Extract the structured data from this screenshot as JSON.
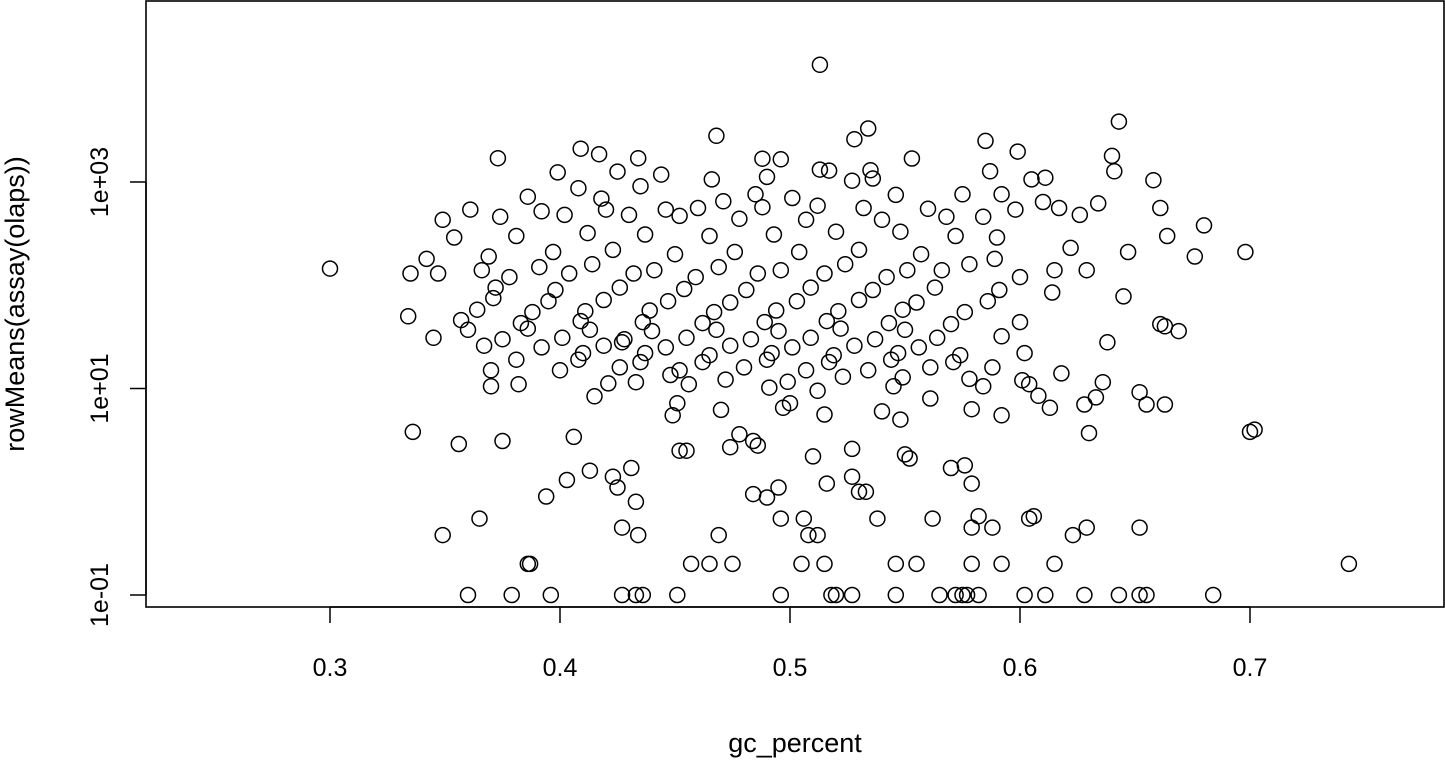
{
  "chart_data": {
    "type": "scatter",
    "title": "",
    "xlabel": "gc_percent",
    "ylabel": "rowMeans(assay(olaps))",
    "x_ticks": [
      "0.3",
      "0.4",
      "0.5",
      "0.6",
      "0.7"
    ],
    "y_ticks": [
      "1e-01",
      "1e+01",
      "1e+03"
    ],
    "xlim": [
      0.22,
      0.78
    ],
    "ylim": [
      0.05,
      50000
    ],
    "y_scale": "log10",
    "grid": false,
    "marker": "open-circle",
    "point_color": "#000000",
    "points": [
      [
        0.513,
        13640
      ],
      [
        0.643,
        3850
      ],
      [
        0.534,
        3300
      ],
      [
        0.468,
        2800
      ],
      [
        0.528,
        2600
      ],
      [
        0.585,
        2500
      ],
      [
        0.409,
        2100
      ],
      [
        0.599,
        1970
      ],
      [
        0.417,
        1860
      ],
      [
        0.373,
        1700
      ],
      [
        0.434,
        1700
      ],
      [
        0.488,
        1680
      ],
      [
        0.496,
        1660
      ],
      [
        0.553,
        1690
      ],
      [
        0.64,
        1790
      ],
      [
        0.641,
        1270
      ],
      [
        0.513,
        1320
      ],
      [
        0.535,
        1300
      ],
      [
        0.399,
        1240
      ],
      [
        0.425,
        1260
      ],
      [
        0.444,
        1180
      ],
      [
        0.49,
        1120
      ],
      [
        0.517,
        1290
      ],
      [
        0.587,
        1270
      ],
      [
        0.611,
        1100
      ],
      [
        0.605,
        1060
      ],
      [
        0.408,
        870
      ],
      [
        0.435,
        910
      ],
      [
        0.466,
        1060
      ],
      [
        0.527,
        1030
      ],
      [
        0.536,
        1080
      ],
      [
        0.658,
        1040
      ],
      [
        0.386,
        720
      ],
      [
        0.418,
        690
      ],
      [
        0.471,
        650
      ],
      [
        0.485,
        760
      ],
      [
        0.501,
        700
      ],
      [
        0.546,
        750
      ],
      [
        0.575,
        760
      ],
      [
        0.592,
        760
      ],
      [
        0.61,
        640
      ],
      [
        0.634,
        620
      ],
      [
        0.361,
        540
      ],
      [
        0.392,
        520
      ],
      [
        0.42,
        540
      ],
      [
        0.446,
        540
      ],
      [
        0.46,
        560
      ],
      [
        0.488,
        570
      ],
      [
        0.512,
        590
      ],
      [
        0.532,
        560
      ],
      [
        0.56,
        550
      ],
      [
        0.598,
        540
      ],
      [
        0.617,
        560
      ],
      [
        0.661,
        560
      ],
      [
        0.349,
        430
      ],
      [
        0.374,
        460
      ],
      [
        0.402,
        480
      ],
      [
        0.43,
        480
      ],
      [
        0.452,
        470
      ],
      [
        0.478,
        440
      ],
      [
        0.507,
        430
      ],
      [
        0.54,
        430
      ],
      [
        0.568,
        460
      ],
      [
        0.584,
        460
      ],
      [
        0.626,
        480
      ],
      [
        0.68,
        380
      ],
      [
        0.354,
        290
      ],
      [
        0.381,
        300
      ],
      [
        0.412,
        320
      ],
      [
        0.437,
        310
      ],
      [
        0.465,
        300
      ],
      [
        0.493,
        310
      ],
      [
        0.52,
        330
      ],
      [
        0.548,
        330
      ],
      [
        0.572,
        300
      ],
      [
        0.59,
        290
      ],
      [
        0.664,
        300
      ],
      [
        0.698,
        210
      ],
      [
        0.342,
        180
      ],
      [
        0.369,
        190
      ],
      [
        0.397,
        210
      ],
      [
        0.423,
        220
      ],
      [
        0.45,
        200
      ],
      [
        0.476,
        210
      ],
      [
        0.504,
        210
      ],
      [
        0.53,
        220
      ],
      [
        0.557,
        200
      ],
      [
        0.589,
        180
      ],
      [
        0.622,
        230
      ],
      [
        0.676,
        190
      ],
      [
        0.335,
        130
      ],
      [
        0.366,
        140
      ],
      [
        0.391,
        150
      ],
      [
        0.414,
        160
      ],
      [
        0.441,
        140
      ],
      [
        0.469,
        150
      ],
      [
        0.496,
        140
      ],
      [
        0.524,
        160
      ],
      [
        0.551,
        140
      ],
      [
        0.578,
        160
      ],
      [
        0.615,
        140
      ],
      [
        0.647,
        210
      ],
      [
        0.3,
        145
      ],
      [
        0.347,
        130
      ],
      [
        0.378,
        120
      ],
      [
        0.404,
        130
      ],
      [
        0.432,
        130
      ],
      [
        0.459,
        120
      ],
      [
        0.486,
        130
      ],
      [
        0.515,
        130
      ],
      [
        0.542,
        120
      ],
      [
        0.566,
        140
      ],
      [
        0.6,
        120
      ],
      [
        0.629,
        140
      ],
      [
        0.372,
        95
      ],
      [
        0.398,
        90
      ],
      [
        0.426,
        95
      ],
      [
        0.454,
        92
      ],
      [
        0.481,
        90
      ],
      [
        0.509,
        95
      ],
      [
        0.536,
        90
      ],
      [
        0.563,
        95
      ],
      [
        0.591,
        90
      ],
      [
        0.614,
        85
      ],
      [
        0.645,
        78
      ],
      [
        0.371,
        75
      ],
      [
        0.395,
        70
      ],
      [
        0.419,
        72
      ],
      [
        0.447,
        70
      ],
      [
        0.474,
        68
      ],
      [
        0.503,
        70
      ],
      [
        0.53,
        72
      ],
      [
        0.555,
        68
      ],
      [
        0.586,
        70
      ],
      [
        0.364,
        58
      ],
      [
        0.388,
        55
      ],
      [
        0.411,
        56
      ],
      [
        0.439,
        57
      ],
      [
        0.467,
        55
      ],
      [
        0.494,
        57
      ],
      [
        0.521,
        56
      ],
      [
        0.549,
        58
      ],
      [
        0.576,
        55
      ],
      [
        0.334,
        50
      ],
      [
        0.357,
        46
      ],
      [
        0.383,
        43
      ],
      [
        0.409,
        45
      ],
      [
        0.436,
        44
      ],
      [
        0.462,
        43
      ],
      [
        0.489,
        44
      ],
      [
        0.516,
        45
      ],
      [
        0.543,
        43
      ],
      [
        0.57,
        42
      ],
      [
        0.6,
        44
      ],
      [
        0.36,
        37
      ],
      [
        0.386,
        38
      ],
      [
        0.413,
        37
      ],
      [
        0.44,
        36
      ],
      [
        0.468,
        37
      ],
      [
        0.495,
        36
      ],
      [
        0.522,
        38
      ],
      [
        0.55,
        37
      ],
      [
        0.345,
        31
      ],
      [
        0.375,
        30
      ],
      [
        0.401,
        31
      ],
      [
        0.428,
        30
      ],
      [
        0.455,
        31
      ],
      [
        0.483,
        30
      ],
      [
        0.509,
        31
      ],
      [
        0.537,
        30
      ],
      [
        0.564,
        31
      ],
      [
        0.592,
        32
      ],
      [
        0.638,
        28
      ],
      [
        0.367,
        26
      ],
      [
        0.392,
        25
      ],
      [
        0.419,
        26
      ],
      [
        0.446,
        25
      ],
      [
        0.474,
        26
      ],
      [
        0.501,
        25
      ],
      [
        0.528,
        26
      ],
      [
        0.556,
        25
      ],
      [
        0.41,
        22
      ],
      [
        0.437,
        22
      ],
      [
        0.465,
        21
      ],
      [
        0.492,
        22
      ],
      [
        0.519,
        21
      ],
      [
        0.547,
        22
      ],
      [
        0.574,
        21
      ],
      [
        0.602,
        22
      ],
      [
        0.381,
        19
      ],
      [
        0.408,
        19
      ],
      [
        0.435,
        18
      ],
      [
        0.462,
        18
      ],
      [
        0.49,
        19
      ],
      [
        0.517,
        18
      ],
      [
        0.544,
        19
      ],
      [
        0.571,
        18
      ],
      [
        0.406,
        3.4
      ],
      [
        0.37,
        15
      ],
      [
        0.4,
        15
      ],
      [
        0.426,
        16
      ],
      [
        0.452,
        15
      ],
      [
        0.48,
        16
      ],
      [
        0.507,
        15
      ],
      [
        0.534,
        15
      ],
      [
        0.561,
        16
      ],
      [
        0.588,
        16
      ],
      [
        0.618,
        14
      ],
      [
        0.661,
        42
      ],
      [
        0.663,
        40
      ],
      [
        0.669,
        36
      ],
      [
        0.427,
        28
      ],
      [
        0.421,
        11.2
      ],
      [
        0.448,
        13.5
      ],
      [
        0.472,
        12.2
      ],
      [
        0.499,
        11.6
      ],
      [
        0.523,
        13.0
      ],
      [
        0.549,
        12.8
      ],
      [
        0.578,
        12.4
      ],
      [
        0.604,
        11.0
      ],
      [
        0.37,
        10.5
      ],
      [
        0.382,
        11.0
      ],
      [
        0.433,
        11.5
      ],
      [
        0.456,
        11.0
      ],
      [
        0.491,
        10.2
      ],
      [
        0.512,
        9.5
      ],
      [
        0.545,
        10.5
      ],
      [
        0.584,
        10.5
      ],
      [
        0.601,
        12.0
      ],
      [
        0.636,
        11.5
      ],
      [
        0.652,
        9.2
      ],
      [
        0.608,
        8.5
      ],
      [
        0.633,
        8.2
      ],
      [
        0.5,
        7.2
      ],
      [
        0.561,
        8.0
      ],
      [
        0.415,
        8.4
      ],
      [
        0.451,
        7.2
      ],
      [
        0.47,
        6.2
      ],
      [
        0.497,
        6.5
      ],
      [
        0.515,
        5.6
      ],
      [
        0.54,
        6.0
      ],
      [
        0.579,
        6.3
      ],
      [
        0.592,
        5.5
      ],
      [
        0.613,
        6.5
      ],
      [
        0.628,
        7.0
      ],
      [
        0.655,
        7.0
      ],
      [
        0.663,
        7.0
      ],
      [
        0.336,
        3.8
      ],
      [
        0.356,
        2.9
      ],
      [
        0.375,
        3.1
      ],
      [
        0.449,
        5.5
      ],
      [
        0.474,
        2.7
      ],
      [
        0.478,
        3.6
      ],
      [
        0.484,
        3.1
      ],
      [
        0.486,
        2.8
      ],
      [
        0.51,
        2.2
      ],
      [
        0.527,
        2.6
      ],
      [
        0.55,
        2.3
      ],
      [
        0.57,
        1.7
      ],
      [
        0.576,
        1.8
      ],
      [
        0.579,
        1.2
      ],
      [
        0.548,
        5.0
      ],
      [
        0.63,
        3.7
      ],
      [
        0.7,
        3.8
      ],
      [
        0.702,
        4.0
      ],
      [
        0.403,
        1.3
      ],
      [
        0.413,
        1.6
      ],
      [
        0.423,
        1.4
      ],
      [
        0.431,
        1.7
      ],
      [
        0.452,
        2.5
      ],
      [
        0.425,
        1.1
      ],
      [
        0.433,
        0.8
      ],
      [
        0.394,
        0.9
      ],
      [
        0.365,
        0.55
      ],
      [
        0.349,
        0.38
      ],
      [
        0.427,
        0.45
      ],
      [
        0.434,
        0.38
      ],
      [
        0.455,
        2.5
      ],
      [
        0.469,
        0.38
      ],
      [
        0.484,
        0.95
      ],
      [
        0.49,
        0.88
      ],
      [
        0.495,
        1.1
      ],
      [
        0.496,
        0.55
      ],
      [
        0.506,
        0.55
      ],
      [
        0.508,
        0.38
      ],
      [
        0.512,
        0.38
      ],
      [
        0.516,
        1.2
      ],
      [
        0.527,
        1.4
      ],
      [
        0.53,
        1.0
      ],
      [
        0.533,
        1.0
      ],
      [
        0.538,
        0.55
      ],
      [
        0.552,
        2.1
      ],
      [
        0.562,
        0.55
      ],
      [
        0.582,
        0.58
      ],
      [
        0.579,
        0.45
      ],
      [
        0.588,
        0.45
      ],
      [
        0.604,
        0.55
      ],
      [
        0.606,
        0.58
      ],
      [
        0.623,
        0.38
      ],
      [
        0.629,
        0.45
      ],
      [
        0.652,
        0.45
      ],
      [
        0.386,
        0.2
      ],
      [
        0.387,
        0.2
      ],
      [
        0.457,
        0.2
      ],
      [
        0.465,
        0.2
      ],
      [
        0.475,
        0.2
      ],
      [
        0.505,
        0.2
      ],
      [
        0.515,
        0.2
      ],
      [
        0.546,
        0.2
      ],
      [
        0.555,
        0.2
      ],
      [
        0.579,
        0.2
      ],
      [
        0.592,
        0.2
      ],
      [
        0.615,
        0.2
      ],
      [
        0.743,
        0.2
      ],
      [
        0.36,
        0.1
      ],
      [
        0.379,
        0.1
      ],
      [
        0.396,
        0.1
      ],
      [
        0.427,
        0.1
      ],
      [
        0.433,
        0.1
      ],
      [
        0.436,
        0.1
      ],
      [
        0.451,
        0.1
      ],
      [
        0.496,
        0.1
      ],
      [
        0.518,
        0.1
      ],
      [
        0.52,
        0.1
      ],
      [
        0.527,
        0.1
      ],
      [
        0.546,
        0.1
      ],
      [
        0.572,
        0.1
      ],
      [
        0.575,
        0.1
      ],
      [
        0.577,
        0.1
      ],
      [
        0.582,
        0.1
      ],
      [
        0.602,
        0.1
      ],
      [
        0.611,
        0.1
      ],
      [
        0.628,
        0.1
      ],
      [
        0.643,
        0.1
      ],
      [
        0.652,
        0.1
      ],
      [
        0.655,
        0.1
      ],
      [
        0.684,
        0.1
      ],
      [
        0.565,
        0.1
      ]
    ]
  }
}
